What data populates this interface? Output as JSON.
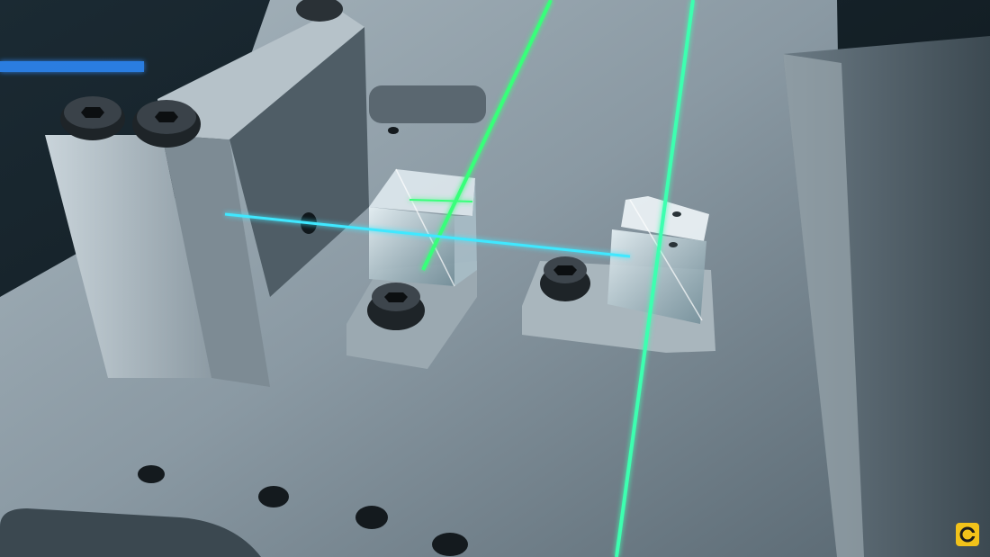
{
  "scene": {
    "subject": "laser-optics-bench",
    "colors": {
      "background_dark": "#0c1418",
      "plate": "#7f8e98",
      "plate_highlight": "#aab7bf",
      "laser": "#39ff7a",
      "laser_cyan": "#3fe8ff",
      "blue_glow": "#2f8cff",
      "badge": "#f2c21a"
    }
  },
  "badge": {
    "icon": "channel-logo-icon"
  }
}
